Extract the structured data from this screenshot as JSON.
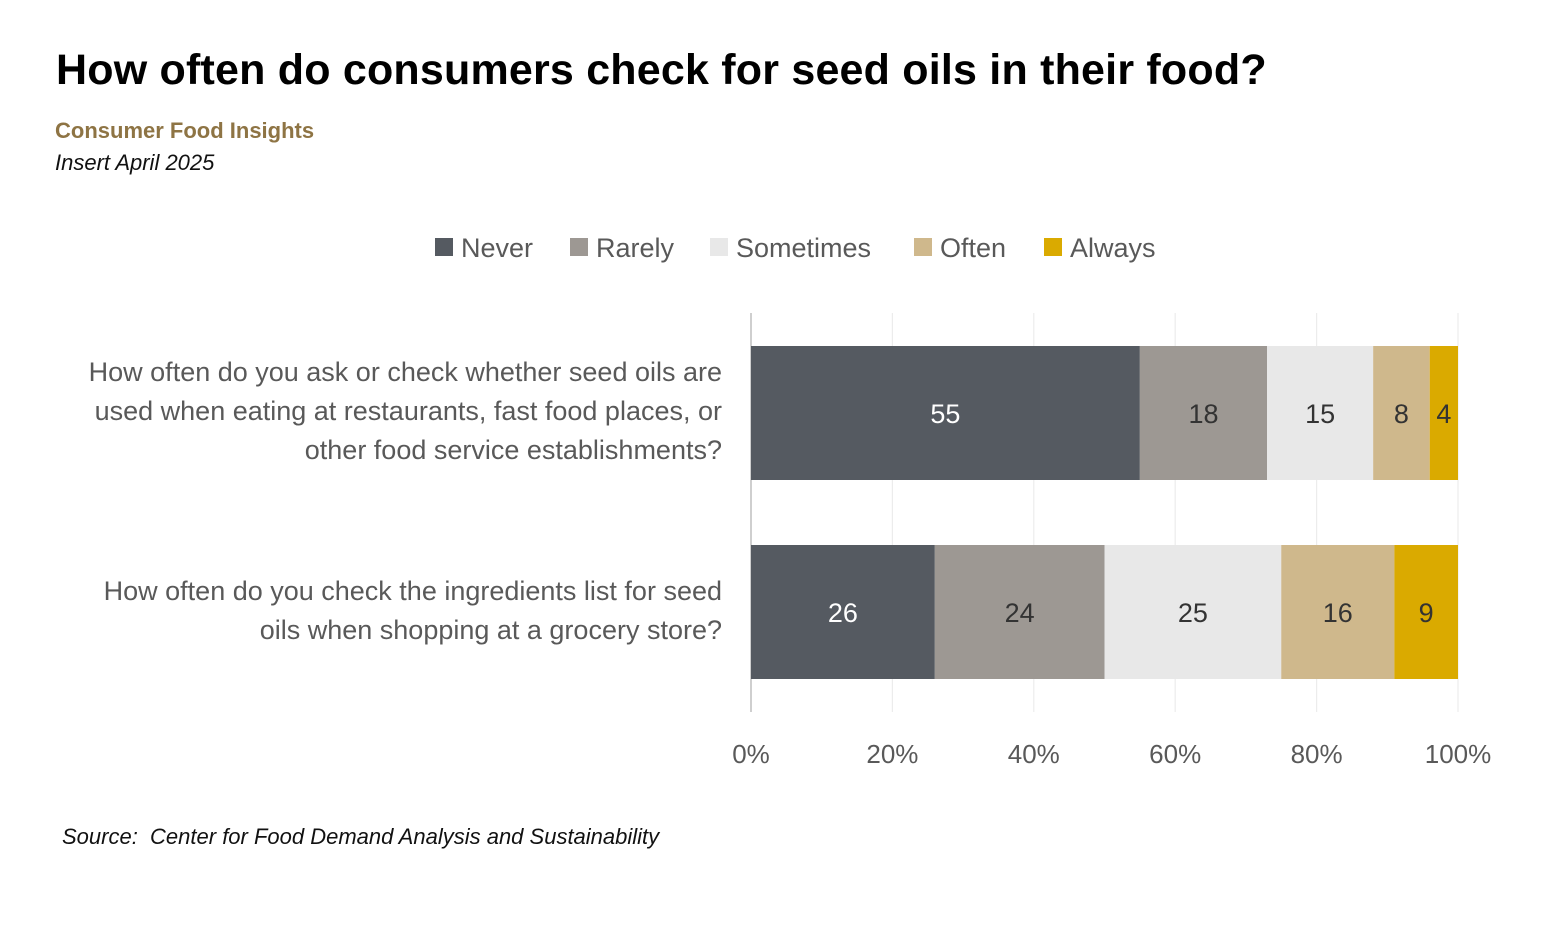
{
  "title": "How often do consumers check for seed oils in their food?",
  "subtitle": "Consumer Food Insights",
  "insert": "Insert April 2025",
  "source": "Source:  Center for Food Demand Analysis and Sustainability",
  "chart_data": {
    "type": "bar",
    "orientation": "horizontal",
    "stacked": true,
    "categories": [
      "How often do you ask or check whether seed oils are used when eating at restaurants, fast food places, or other food service establishments?",
      "How often do you check the ingredients list for seed oils when shopping at a grocery store?"
    ],
    "series": [
      {
        "name": "Never",
        "color": "#555a61",
        "label_color": "#ffffff",
        "values": [
          55,
          26
        ]
      },
      {
        "name": "Rarely",
        "color": "#9d9893",
        "label_color": "#333333",
        "values": [
          18,
          24
        ]
      },
      {
        "name": "Sometimes",
        "color": "#e8e8e8",
        "label_color": "#333333",
        "values": [
          15,
          25
        ]
      },
      {
        "name": "Often",
        "color": "#cfb88c",
        "label_color": "#333333",
        "values": [
          8,
          16
        ]
      },
      {
        "name": "Always",
        "color": "#daaa00",
        "label_color": "#333333",
        "values": [
          4,
          9
        ]
      }
    ],
    "xlim": [
      0,
      100
    ],
    "xticks": [
      "0%",
      "20%",
      "40%",
      "60%",
      "80%",
      "100%"
    ],
    "grid": true,
    "legend_position": "top"
  }
}
